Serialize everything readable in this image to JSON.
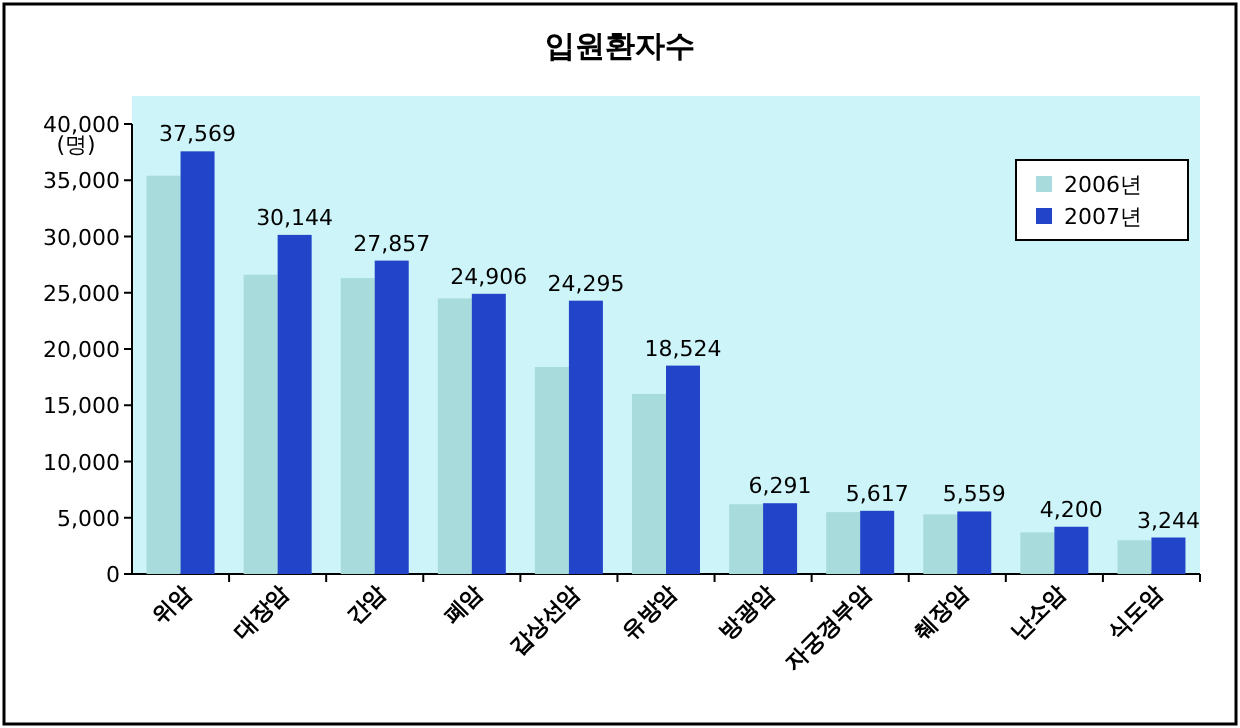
{
  "chart_data": {
    "type": "bar",
    "title": "입원환자수",
    "ylabel": "(명)",
    "categories": [
      "위암",
      "대장암",
      "간암",
      "폐암",
      "갑상선암",
      "유방암",
      "방광암",
      "자궁경부암",
      "췌장암",
      "난소암",
      "식도암"
    ],
    "series": [
      {
        "name": "2006년",
        "color": "#a8dcdc",
        "values": [
          35400,
          26600,
          26300,
          24500,
          18400,
          16000,
          6200,
          5500,
          5300,
          3700,
          3000
        ]
      },
      {
        "name": "2007년",
        "color": "#2244c8",
        "values": [
          37569,
          30144,
          27857,
          24906,
          24295,
          18524,
          6291,
          5617,
          5559,
          4200,
          3244
        ],
        "value_labels": [
          "37,569",
          "30,144",
          "27,857",
          "24,906",
          "24,295",
          "18,524",
          "6,291",
          "5,617",
          "5,559",
          "4,200",
          "3,244"
        ]
      }
    ],
    "ylim": [
      0,
      40000
    ],
    "yticks": [
      {
        "value": 0,
        "label": "0"
      },
      {
        "value": 5000,
        "label": "5,000"
      },
      {
        "value": 10000,
        "label": "10,000"
      },
      {
        "value": 15000,
        "label": "15,000"
      },
      {
        "value": 20000,
        "label": "20,000"
      },
      {
        "value": 25000,
        "label": "25,000"
      },
      {
        "value": 30000,
        "label": "30,000"
      },
      {
        "value": 35000,
        "label": "35,000"
      },
      {
        "value": 40000,
        "label": "40,000"
      }
    ],
    "legend": "top right",
    "grid": false
  }
}
